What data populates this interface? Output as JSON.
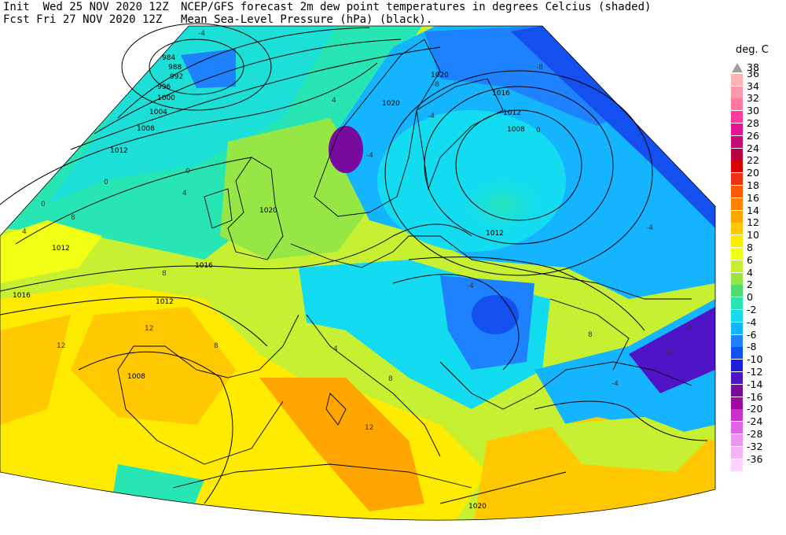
{
  "header": {
    "init_line": "Init  Wed 25 NOV 2020 12Z",
    "fcst_line": "Fcst Fri 27 NOV 2020 12Z",
    "title_line1": "NCEP/GFS forecast 2m dew point temperatures in degrees Celcius (shaded)",
    "title_line2": "Mean Sea-Level Pressure (hPa) (black)."
  },
  "legend": {
    "title": "deg. C",
    "levels": [
      {
        "label": "38",
        "color": "#a0a0a0"
      },
      {
        "label": "36",
        "color": "#ffb4b4"
      },
      {
        "label": "34",
        "color": "#ff96aa"
      },
      {
        "label": "32",
        "color": "#ff78a0"
      },
      {
        "label": "30",
        "color": "#ff3ca0"
      },
      {
        "label": "28",
        "color": "#e61496"
      },
      {
        "label": "26",
        "color": "#c80a78"
      },
      {
        "label": "24",
        "color": "#b4003c"
      },
      {
        "label": "22",
        "color": "#dc0000"
      },
      {
        "label": "20",
        "color": "#f03214"
      },
      {
        "label": "18",
        "color": "#ff5a00"
      },
      {
        "label": "16",
        "color": "#ff8200"
      },
      {
        "label": "14",
        "color": "#ffa500"
      },
      {
        "label": "12",
        "color": "#ffc800"
      },
      {
        "label": "10",
        "color": "#ffeb00"
      },
      {
        "label": "8",
        "color": "#f0ff14"
      },
      {
        "label": "6",
        "color": "#c8f032"
      },
      {
        "label": "4",
        "color": "#96e646"
      },
      {
        "label": "2",
        "color": "#50dc6e"
      },
      {
        "label": "0",
        "color": "#28e6b4"
      },
      {
        "label": "-2",
        "color": "#14dcf0"
      },
      {
        "label": "-4",
        "color": "#14b4ff"
      },
      {
        "label": "-6",
        "color": "#1e82ff"
      },
      {
        "label": "-8",
        "color": "#1450f0"
      },
      {
        "label": "-10",
        "color": "#1e1edc"
      },
      {
        "label": "-12",
        "color": "#5014c8"
      },
      {
        "label": "-14",
        "color": "#780aa0"
      },
      {
        "label": "-16",
        "color": "#a00aa0"
      },
      {
        "label": "-20",
        "color": "#c832c8"
      },
      {
        "label": "-24",
        "color": "#dc64e6"
      },
      {
        "label": "-28",
        "color": "#eb96f0"
      },
      {
        "label": "-32",
        "color": "#f5b4f5"
      },
      {
        "label": "-36",
        "color": "#ffd2ff"
      }
    ]
  },
  "isobar_labels": [
    "984",
    "988",
    "992",
    "996",
    "1000",
    "1004",
    "1008",
    "1012",
    "1020",
    "1016",
    "1012",
    "1008",
    "1012",
    "1016",
    "1012",
    "1008",
    "1020",
    "1020",
    "1020",
    "1016",
    "1012"
  ],
  "dewpoint_labels": [
    "-4",
    "-4",
    "-8",
    "-8",
    "-4",
    "0",
    "0",
    "4",
    "4",
    "0",
    "8",
    "4",
    "8",
    "12",
    "12",
    "8",
    "12",
    "8",
    "4",
    "-4",
    "-4",
    "-12",
    "-8",
    "8",
    "0",
    "-4"
  ]
}
